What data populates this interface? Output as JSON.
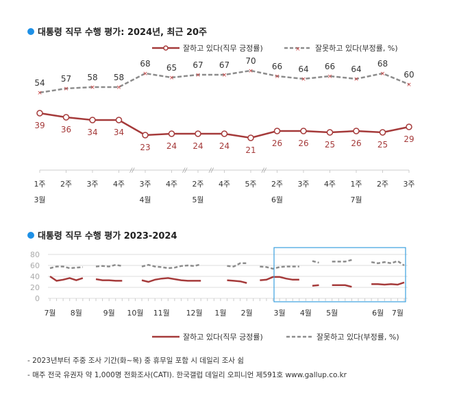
{
  "colors": {
    "approve": "#a53a3a",
    "disapprove": "#8c8c8c",
    "bullet": "#1e90e6",
    "highlight": "#3aa0e0"
  },
  "chart_data": [
    {
      "type": "line",
      "title": "대통령 직무 수행 평가: 2024년, 최근 20주",
      "x": [
        "1주",
        "2주",
        "3주",
        "4주",
        "3주",
        "4주",
        "2주",
        "4주",
        "5주",
        "2주",
        "3주",
        "4주",
        "1주",
        "2주",
        "3주"
      ],
      "months": [
        {
          "label": "3월",
          "at": 0
        },
        {
          "label": "4월",
          "at": 4
        },
        {
          "label": "5월",
          "at": 6
        },
        {
          "label": "6월",
          "at": 9
        },
        {
          "label": "7월",
          "at": 12
        }
      ],
      "breaks_after": [
        3,
        5,
        6,
        8
      ],
      "series": [
        {
          "name": "잘하고 있다(직무 긍정률)",
          "values": [
            39,
            36,
            34,
            34,
            23,
            24,
            24,
            24,
            21,
            26,
            26,
            25,
            26,
            25,
            29
          ]
        },
        {
          "name": "잘못하고 있다(부정률, %)",
          "values": [
            54,
            57,
            58,
            58,
            68,
            65,
            67,
            67,
            70,
            66,
            64,
            66,
            64,
            68,
            60
          ]
        }
      ]
    },
    {
      "type": "line",
      "title": "대통령 직무 수행 평가 2023-2024",
      "ylim": [
        0,
        80
      ],
      "yticks": [
        "0",
        "20",
        "40",
        "60",
        "80"
      ],
      "grid": true,
      "months": [
        {
          "label": "7월",
          "at": 0
        },
        {
          "label": "8월",
          "at": 4
        },
        {
          "label": "9월",
          "at": 9
        },
        {
          "label": "10월",
          "at": 13
        },
        {
          "label": "11월",
          "at": 17
        },
        {
          "label": "12월",
          "at": 22
        },
        {
          "label": "1월",
          "at": 26
        },
        {
          "label": "2월",
          "at": 30
        },
        {
          "label": "3월",
          "at": 35
        },
        {
          "label": "4월",
          "at": 39
        },
        {
          "label": "5월",
          "at": 43
        },
        {
          "label": "6월",
          "at": 50
        },
        {
          "label": "7월",
          "at": 53
        }
      ],
      "series": [
        {
          "name": "잘하고 있다(직무 긍정률)",
          "values": [
            40,
            32,
            34,
            37,
            33,
            37,
            null,
            35,
            33,
            33,
            32,
            32,
            null,
            null,
            33,
            30,
            34,
            36,
            37,
            35,
            33,
            32,
            32,
            32,
            null,
            null,
            null,
            33,
            32,
            31,
            28,
            null,
            33,
            34,
            39,
            39,
            36,
            34,
            34,
            null,
            23,
            24,
            null,
            24,
            24,
            24,
            21,
            null,
            null,
            26,
            26,
            25,
            26,
            25,
            29
          ]
        },
        {
          "name": "잘못하고 있다(부정률, %)",
          "values": [
            55,
            58,
            58,
            55,
            56,
            57,
            null,
            58,
            59,
            58,
            61,
            59,
            null,
            null,
            58,
            61,
            58,
            57,
            55,
            56,
            59,
            60,
            59,
            62,
            null,
            null,
            null,
            59,
            58,
            64,
            64,
            null,
            58,
            57,
            54,
            57,
            58,
            58,
            58,
            null,
            68,
            65,
            null,
            67,
            67,
            67,
            70,
            null,
            null,
            66,
            64,
            66,
            64,
            68,
            60
          ]
        }
      ]
    }
  ],
  "notes": [
    "- 2023년부터 주중 조사 기간(화~목) 중 휴무일 포함 시 데일리 조사 쉼",
    "- 매주 전국 유권자 약 1,000명 전화조사(CATI). 한국갤럽 데일리 오피니언 제591호 www.gallup.co.kr"
  ]
}
